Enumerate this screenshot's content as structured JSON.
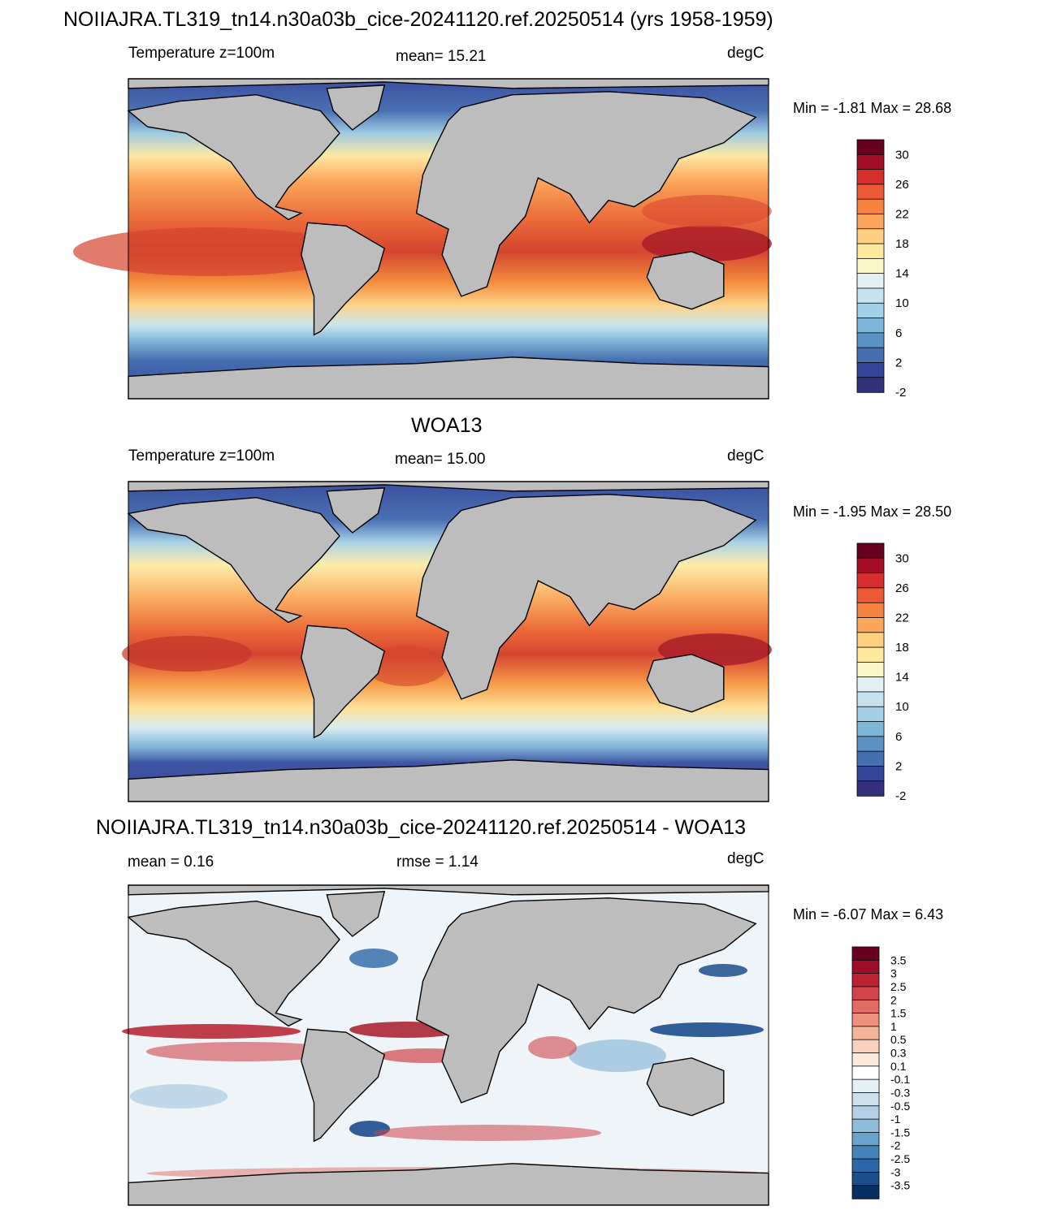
{
  "page_title": "NOIIAJRA.TL319_tn14.n30a03b_cice-20241120.ref.20250514 (yrs 1958-1959)",
  "panels": [
    {
      "title": "",
      "left_label": "Temperature z=100m",
      "center_label": "mean=  15.21",
      "units": "degC",
      "minmax": "Min =  -1.81 Max =  28.68"
    },
    {
      "title": "WOA13",
      "left_label": "Temperature z=100m",
      "center_label": "mean=  15.00",
      "units": "degC",
      "minmax": "Min =  -1.95 Max =  28.50"
    },
    {
      "title": "NOIIAJRA.TL319_tn14.n30a03b_cice-20241120.ref.20250514 - WOA13",
      "left_label": "mean =   0.16",
      "center_label": "rmse =   1.14",
      "units": "degC",
      "minmax": "Min =  -6.07 Max =   6.43"
    }
  ],
  "colors": {
    "land": "#bdbdbd",
    "outline": "#000000"
  },
  "chart_data": [
    {
      "type": "heatmap",
      "title": "Temperature z=100m",
      "units": "degC",
      "mean": 15.21,
      "min": -1.81,
      "max": 28.68,
      "colorbar_labels": [
        "30",
        "26",
        "22",
        "18",
        "14",
        "10",
        "6",
        "2",
        "-2"
      ],
      "colorbar_colors": [
        "#67001f",
        "#a50f26",
        "#d42f2d",
        "#eb5a35",
        "#f5823f",
        "#fba65a",
        "#fdcf7f",
        "#fee99c",
        "#fdf8c7",
        "#e4f1f4",
        "#c4e3ee",
        "#a2d0e5",
        "#7fb5d7",
        "#5d91c4",
        "#456fb0",
        "#35469a",
        "#313078"
      ],
      "tick_every": 2,
      "tick_start": 1
    },
    {
      "type": "heatmap",
      "title": "WOA13",
      "units": "degC",
      "mean": 15.0,
      "min": -1.95,
      "max": 28.5,
      "colorbar_labels": [
        "30",
        "26",
        "22",
        "18",
        "14",
        "10",
        "6",
        "2",
        "-2"
      ],
      "colorbar_colors": [
        "#67001f",
        "#a50f26",
        "#d42f2d",
        "#eb5a35",
        "#f5823f",
        "#fba65a",
        "#fdcf7f",
        "#fee99c",
        "#fdf8c7",
        "#e4f1f4",
        "#c4e3ee",
        "#a2d0e5",
        "#7fb5d7",
        "#5d91c4",
        "#456fb0",
        "#35469a",
        "#313078"
      ],
      "tick_every": 2,
      "tick_start": 1
    },
    {
      "type": "heatmap",
      "title": "NOIIAJRA.TL319_tn14.n30a03b_cice-20241120.ref.20250514 - WOA13",
      "units": "degC",
      "mean": 0.16,
      "rmse": 1.14,
      "min": -6.07,
      "max": 6.43,
      "colorbar_labels": [
        "3.5",
        "3",
        "2.5",
        "2",
        "1.5",
        "1",
        "0.5",
        "0.3",
        "0.1",
        "-0.1",
        "-0.3",
        "-0.5",
        "-1",
        "-1.5",
        "-2",
        "-2.5",
        "-3",
        "-3.5"
      ],
      "colorbar_colors": [
        "#67001f",
        "#9e0d27",
        "#bd2232",
        "#d0444a",
        "#e06c63",
        "#ec927d",
        "#f4b49a",
        "#f9d1bd",
        "#fde8dc",
        "#ffffff",
        "#e4eff6",
        "#cce0ee",
        "#b2d1e6",
        "#8fbcdb",
        "#6aa3cd",
        "#4584bb",
        "#2c67a6",
        "#1c4e8d",
        "#053061"
      ],
      "tick_every": 1,
      "tick_start": 1
    }
  ]
}
